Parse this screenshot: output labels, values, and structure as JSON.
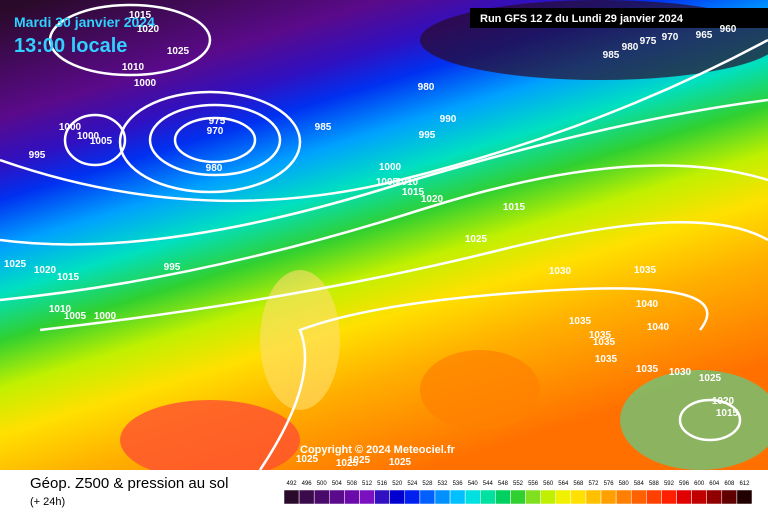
{
  "header": {
    "date": "Mardi 30 janvier 2024",
    "time": "13:00 locale",
    "run": "Run GFS 12 Z du Lundi 29 janvier 2024"
  },
  "copyright": "Copyright © 2024 Meteociel.fr",
  "footer": {
    "title": "Géop. Z500 & pression au sol",
    "subtitle": "(+ 24h)"
  },
  "legend": {
    "values": [
      "492",
      "496",
      "500",
      "504",
      "508",
      "512",
      "516",
      "520",
      "524",
      "528",
      "532",
      "536",
      "540",
      "544",
      "548",
      "552",
      "556",
      "560",
      "564",
      "568",
      "572",
      "576",
      "580",
      "584",
      "588",
      "592",
      "596",
      "600",
      "604",
      "608",
      "612"
    ],
    "colors": [
      "#2a0a2a",
      "#3a0a4a",
      "#4a0a6a",
      "#5a0a8a",
      "#6a0aaa",
      "#7a10c0",
      "#3010c0",
      "#0000d0",
      "#0020f0",
      "#0060ff",
      "#0090ff",
      "#00c0ff",
      "#00e0e0",
      "#00e0a0",
      "#00d060",
      "#30d030",
      "#80e020",
      "#c0f000",
      "#f0f000",
      "#ffe000",
      "#ffc000",
      "#ffa000",
      "#ff8000",
      "#ff6000",
      "#ff4000",
      "#ff2000",
      "#e00000",
      "#c00000",
      "#900000",
      "#600000",
      "#200000"
    ]
  },
  "isobar_labels": [
    "1015",
    "1020",
    "1025",
    "1010",
    "1000",
    "980",
    "975",
    "970",
    "985",
    "995",
    "990",
    "980",
    "1000",
    "1000",
    "1005",
    "995",
    "975",
    "970",
    "965",
    "960",
    "980",
    "985",
    "1000",
    "1005",
    "1010",
    "1015",
    "1020",
    "1015",
    "1025",
    "995",
    "1025",
    "1020",
    "1015",
    "1010",
    "1005",
    "1000",
    "1030",
    "1035",
    "1040",
    "1040",
    "1035",
    "1035",
    "1035",
    "1035",
    "1035",
    "1030",
    "1025",
    "1020",
    "1015",
    "1025",
    "1025",
    "1025",
    "1025"
  ]
}
